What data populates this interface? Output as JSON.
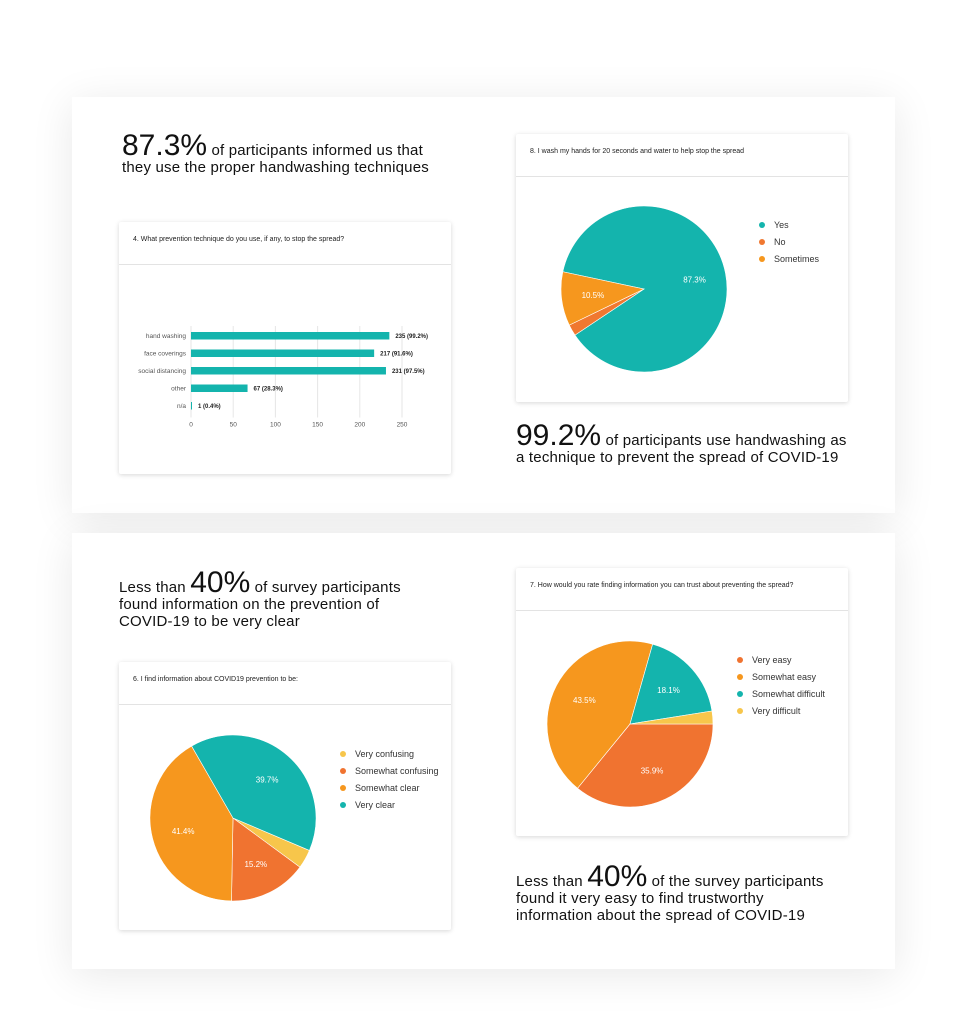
{
  "stats": {
    "handwashing_techniques": {
      "big": "87.3%",
      "text": " of participants informed us that",
      "text2": "they use the proper handwashing techniques"
    },
    "handwashing_use": {
      "big": "99.2%",
      "text": " of participants use handwashing as",
      "text2": "a technique to prevent the spread of COVID-19"
    },
    "very_clear": {
      "pre": "Less than ",
      "big": "40%",
      "text": " of survey participants",
      "text2": "found information on the prevention of",
      "text3": "COVID-19 to be very clear"
    },
    "very_easy": {
      "pre": "Less than ",
      "big": "40%",
      "text": " of the survey participants",
      "text2": "found it very easy to find trustworthy",
      "text3": "information about the spread of COVID-19"
    }
  },
  "chart_data": [
    {
      "id": "prevention",
      "type": "bar",
      "orientation": "horizontal",
      "title": "4. What prevention technique do you use, if any, to stop the spread?",
      "categories": [
        "hand washing",
        "face coverings",
        "social distancing",
        "other",
        "n/a"
      ],
      "values": [
        235,
        217,
        231,
        67,
        1
      ],
      "data_labels": [
        "235 (99.2%)",
        "217 (91.6%)",
        "231 (97.5%)",
        "67 (28.3%)",
        "1 (0.4%)"
      ],
      "xlim": [
        0,
        250
      ],
      "xticks": [
        "0",
        "50",
        "100",
        "150",
        "200",
        "250"
      ],
      "grid": true,
      "color": "#14b4ad"
    },
    {
      "id": "wash20",
      "type": "pie",
      "title": "8. I wash my hands for 20 seconds and water to help stop the spread",
      "labels": [
        "Yes",
        "No",
        "Sometimes"
      ],
      "values": [
        87.3,
        2.2,
        10.5
      ],
      "slice_labels": [
        "87.3%",
        "",
        "10.5%"
      ],
      "colors": [
        "#14b4ad",
        "#f07830",
        "#f6971e"
      ],
      "legend": "right"
    },
    {
      "id": "info_clear",
      "type": "pie",
      "title": "6. I find information about COVID19 prevention to be:",
      "labels": [
        "Very confusing",
        "Somewhat confusing",
        "Somewhat clear",
        "Very clear"
      ],
      "values": [
        3.7,
        15.2,
        41.4,
        39.7
      ],
      "slice_labels": [
        "",
        "15.2%",
        "41.4%",
        "39.7%"
      ],
      "colors": [
        "#f7c64b",
        "#f07330",
        "#f6971e",
        "#14b4ad"
      ],
      "legend": "right"
    },
    {
      "id": "trust_info",
      "type": "pie",
      "title": "7. How would you rate finding information you can trust about preventing the spread?",
      "labels": [
        "Very easy",
        "Somewhat easy",
        "Somewhat difficult",
        "Very difficult"
      ],
      "values": [
        35.9,
        43.5,
        18.1,
        2.5
      ],
      "slice_labels": [
        "35.9%",
        "43.5%",
        "18.1%",
        ""
      ],
      "colors": [
        "#f07330",
        "#f6971e",
        "#14b4ad",
        "#f7c64b"
      ],
      "legend": "right"
    }
  ]
}
